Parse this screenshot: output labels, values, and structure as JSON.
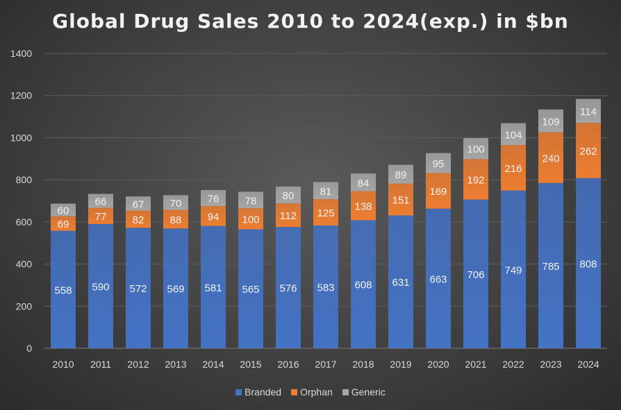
{
  "chart_data": {
    "type": "bar",
    "stacked": true,
    "title": "Global Drug Sales 2010 to 2024(exp.) in $bn",
    "xlabel": "",
    "ylabel": "",
    "ylim": [
      0,
      1400
    ],
    "yticks": [
      0,
      200,
      400,
      600,
      800,
      1000,
      1200,
      1400
    ],
    "grid": true,
    "legend": "bottom",
    "categories": [
      "2010",
      "2011",
      "2012",
      "2013",
      "2014",
      "2015",
      "2016",
      "2017",
      "2018",
      "2019",
      "2020",
      "2021",
      "2022",
      "2023",
      "2024"
    ],
    "series": [
      {
        "name": "Branded",
        "color": "#4472c4",
        "values": [
          558,
          590,
          572,
          569,
          581,
          565,
          576,
          583,
          608,
          631,
          663,
          706,
          749,
          785,
          808
        ]
      },
      {
        "name": "Orphan",
        "color": "#ed7d31",
        "values": [
          69,
          77,
          82,
          88,
          94,
          100,
          112,
          125,
          138,
          151,
          169,
          192,
          216,
          240,
          262
        ]
      },
      {
        "name": "Generic",
        "color": "#a5a5a5",
        "values": [
          60,
          66,
          67,
          70,
          76,
          78,
          80,
          81,
          84,
          89,
          95,
          100,
          104,
          109,
          114
        ]
      }
    ]
  }
}
